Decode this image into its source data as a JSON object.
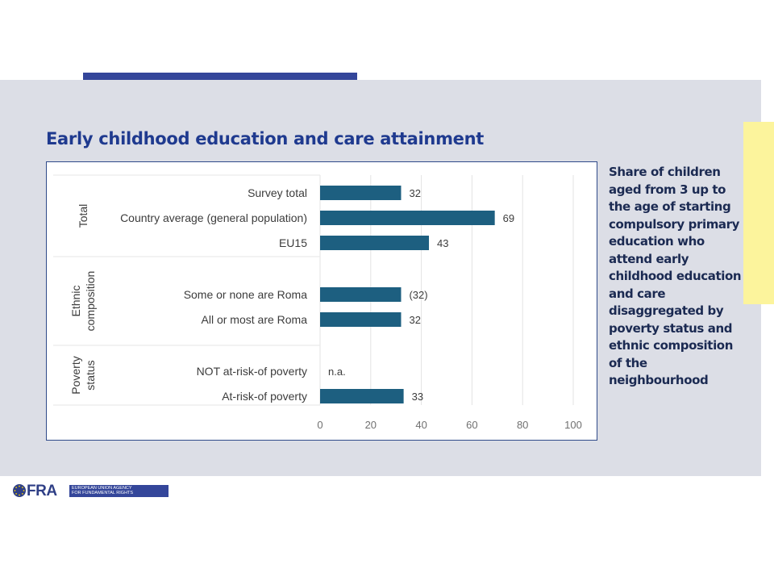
{
  "slide": {
    "title": "Early childhood education and care attainment",
    "side_text": "Share of children aged from 3 up to the age of starting compulsory primary education who attend early childhood education and care disaggregated by poverty status and ethnic composition of the neighbourhood"
  },
  "logo": {
    "text": "FRA",
    "line1": "EUROPEAN UNION AGENCY",
    "line2": "FOR FUNDAMENTAL RIGHTS"
  },
  "colors": {
    "bar": "#1d5f80",
    "title": "#1f3a8f",
    "panel": "#dcdee6",
    "accent": "#34469a",
    "tab": "#fcf49c"
  },
  "chart_data": {
    "type": "bar",
    "orientation": "horizontal",
    "title": "",
    "xlabel": "",
    "ylabel": "",
    "xlim": [
      0,
      100
    ],
    "ticks": [
      "0",
      "20",
      "40",
      "60",
      "80",
      "100"
    ],
    "grid": true,
    "groups": [
      {
        "name": "Total",
        "rows": [
          "Survey total",
          "Country average (general population)",
          "EU15"
        ]
      },
      {
        "name": "Ethnic composition",
        "rows": [
          "Some or none are Roma",
          "All or most are Roma"
        ]
      },
      {
        "name": "Poverty status",
        "rows": [
          "NOT at-risk-of poverty",
          "At-risk-of poverty"
        ]
      }
    ],
    "categories": [
      "Survey total",
      "Country average (general population)",
      "EU15",
      "Some or none are Roma",
      "All or most are Roma",
      "NOT at-risk-of poverty",
      "At-risk-of poverty"
    ],
    "values": [
      32,
      69,
      43,
      32,
      32,
      null,
      33
    ],
    "value_labels": [
      "32",
      "69",
      "43",
      "(32)",
      "32",
      "n.a.",
      "33"
    ]
  }
}
